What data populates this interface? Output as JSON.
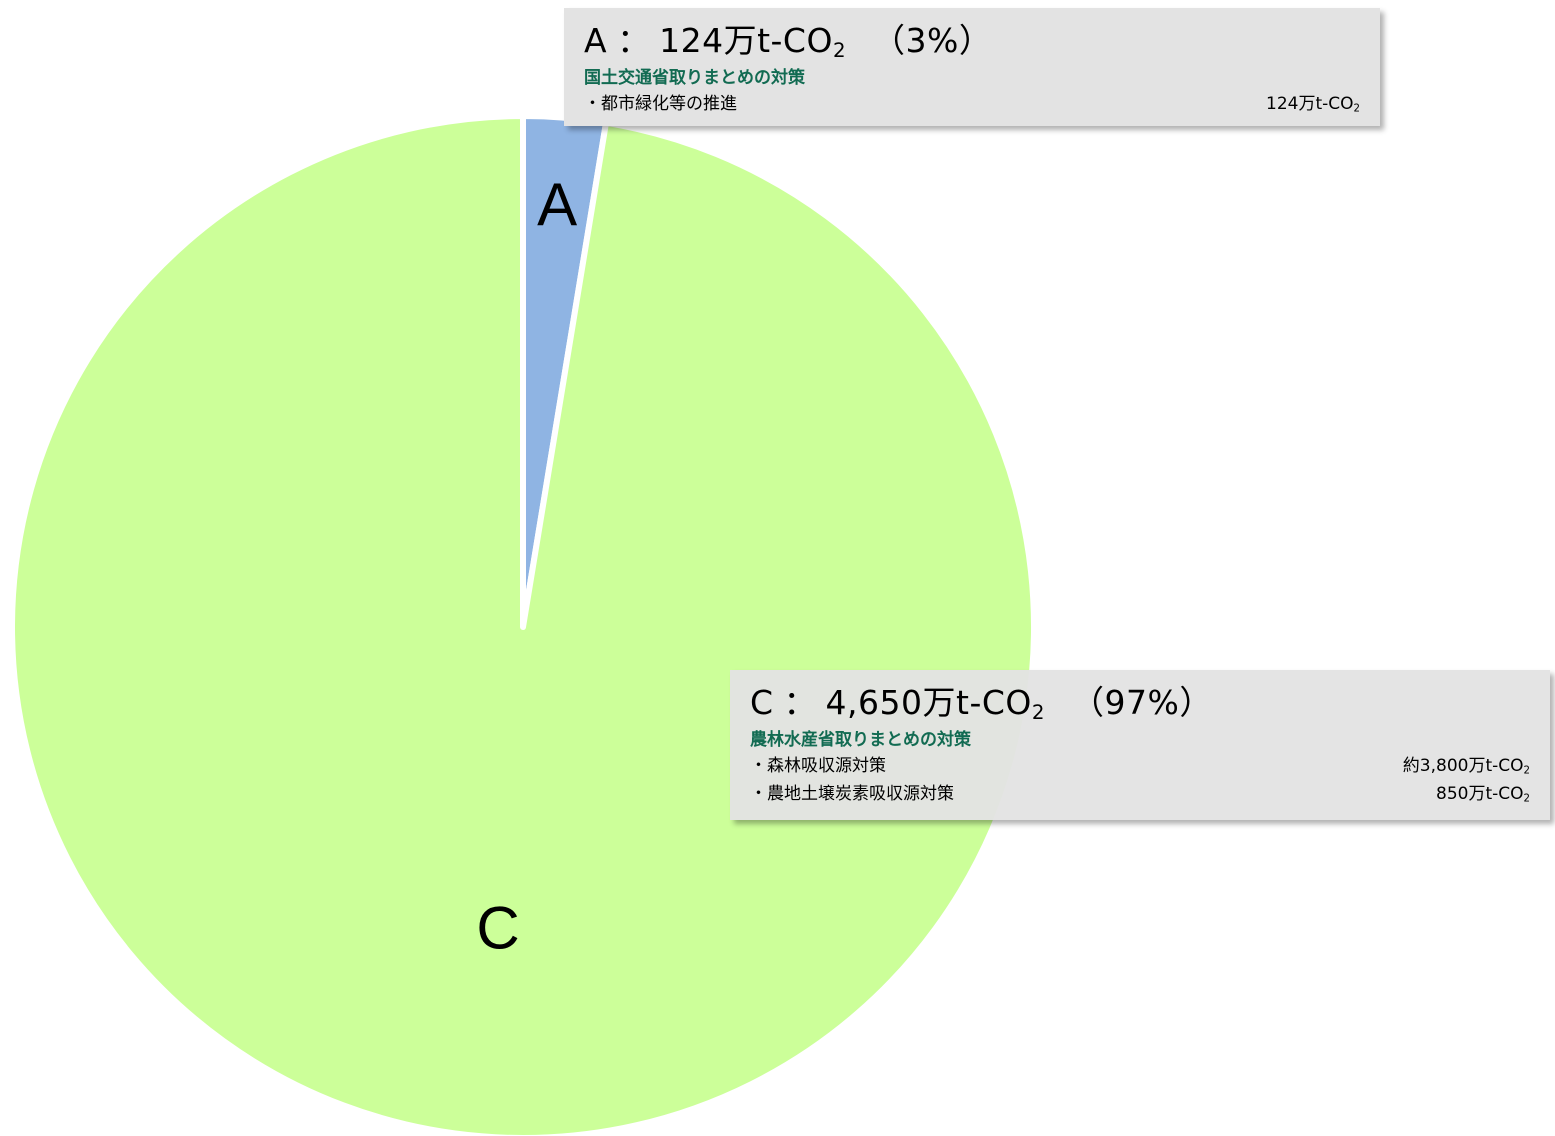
{
  "chart_data": {
    "type": "pie",
    "unit": "万t-CO2",
    "slices": [
      {
        "label": "A",
        "value": 124,
        "percent": 3,
        "color": "#8fb4e3"
      },
      {
        "label": "C",
        "value": 4650,
        "percent": 97,
        "color": "#ccff99"
      }
    ]
  },
  "callouts": {
    "a": {
      "label": "A",
      "sep": "：",
      "amount": "124万t-CO",
      "amount_sub": "2",
      "percent": "（3%）",
      "ministry": "国土交通省取りまとめの対策",
      "items": [
        {
          "name": "・都市緑化等の推進",
          "value": "124万t-CO",
          "value_sub": "2"
        }
      ]
    },
    "c": {
      "label": "C",
      "sep": "：",
      "amount": "4,650万t-CO",
      "amount_sub": "2",
      "percent": "（97%）",
      "ministry": "農林水産省取りまとめの対策",
      "items": [
        {
          "name": "・森林吸収源対策",
          "value": "約3,800万t-CO",
          "value_sub": "2"
        },
        {
          "name": "・農地土壌炭素吸収源対策",
          "value": "850万t-CO",
          "value_sub": "2"
        }
      ]
    }
  }
}
